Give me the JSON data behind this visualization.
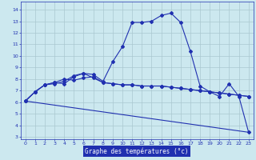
{
  "title": "Graphe des températures (°c)",
  "bg_color": "#cce8ef",
  "grid_color": "#aac8d0",
  "line_color": "#2030b0",
  "xlabel_bg": "#2030b0",
  "xlabel_fg": "#ffffff",
  "xlim": [
    -0.5,
    23.5
  ],
  "ylim": [
    2.8,
    14.7
  ],
  "yticks": [
    3,
    4,
    5,
    6,
    7,
    8,
    9,
    10,
    11,
    12,
    13,
    14
  ],
  "xticks": [
    0,
    1,
    2,
    3,
    4,
    5,
    6,
    7,
    8,
    9,
    10,
    11,
    12,
    13,
    14,
    15,
    16,
    17,
    18,
    19,
    20,
    21,
    22,
    23
  ],
  "curve1_y": [
    6.1,
    6.9,
    7.5,
    7.7,
    7.6,
    8.2,
    8.5,
    8.4,
    7.8,
    9.5,
    10.8,
    12.9,
    12.9,
    13.0,
    13.5,
    13.7,
    12.9,
    10.4,
    7.4,
    6.9,
    6.5,
    7.6,
    6.5,
    3.4
  ],
  "curve2_y": [
    6.1,
    6.9,
    7.5,
    7.7,
    8.0,
    7.9,
    8.1,
    8.2,
    7.7,
    7.6,
    7.5,
    7.5,
    7.4,
    7.4,
    7.4,
    7.3,
    7.2,
    7.1,
    7.0,
    6.9,
    6.8,
    6.7,
    6.6,
    6.5
  ],
  "curve3_y": [
    6.1,
    6.9,
    7.5,
    7.6,
    7.8,
    8.3,
    8.5,
    8.1,
    7.7,
    7.6,
    7.5,
    7.5,
    7.4,
    7.4,
    7.4,
    7.3,
    7.2,
    7.1,
    7.0,
    6.9,
    6.8,
    6.7,
    6.6,
    6.5
  ],
  "trend_x": [
    0,
    23
  ],
  "trend_y": [
    6.1,
    3.4
  ]
}
